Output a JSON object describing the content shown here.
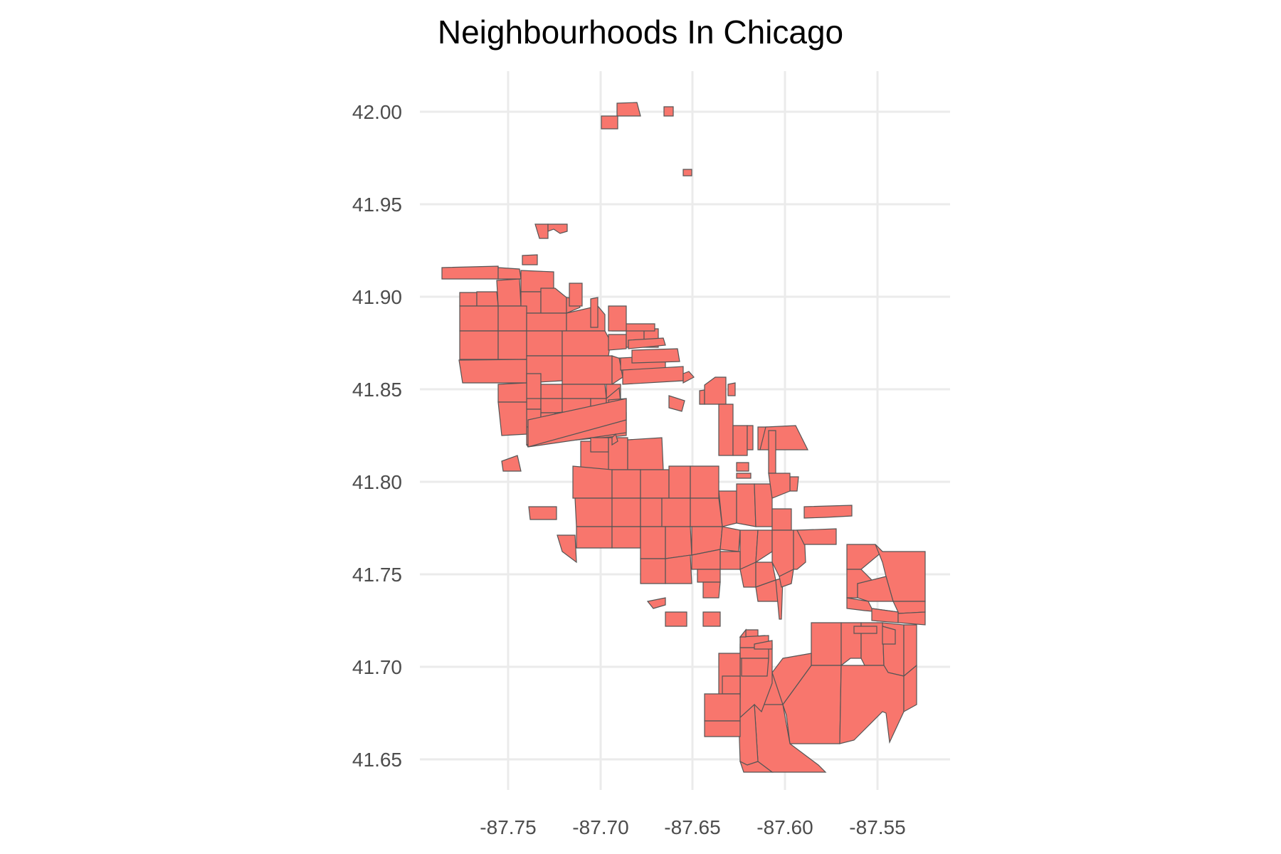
{
  "title": "Neighbourhoods In Chicago",
  "colors": {
    "fill": "#F8766D",
    "stroke": "#555555",
    "grid": "#EBEBEB",
    "text": "#4D4D4D"
  },
  "axes": {
    "x_ticks": [
      "-87.75",
      "-87.70",
      "-87.65",
      "-87.60",
      "-87.55"
    ],
    "y_ticks": [
      "42.00",
      "41.95",
      "41.90",
      "41.85",
      "41.80",
      "41.75",
      "41.70",
      "41.65"
    ]
  },
  "chart_data": {
    "type": "map",
    "title": "Neighbourhoods In Chicago",
    "xlabel": "",
    "ylabel": "",
    "xlim": [
      -87.79,
      -87.51
    ],
    "ylim": [
      41.63,
      42.02
    ],
    "x_ticks": [
      -87.75,
      -87.7,
      -87.65,
      -87.6,
      -87.55
    ],
    "y_ticks": [
      42.0,
      41.95,
      41.9,
      41.85,
      41.8,
      41.75,
      41.7,
      41.65
    ],
    "feature_type": "neighbourhood polygons (longitude/latitude)",
    "fill": "#F8766D"
  }
}
